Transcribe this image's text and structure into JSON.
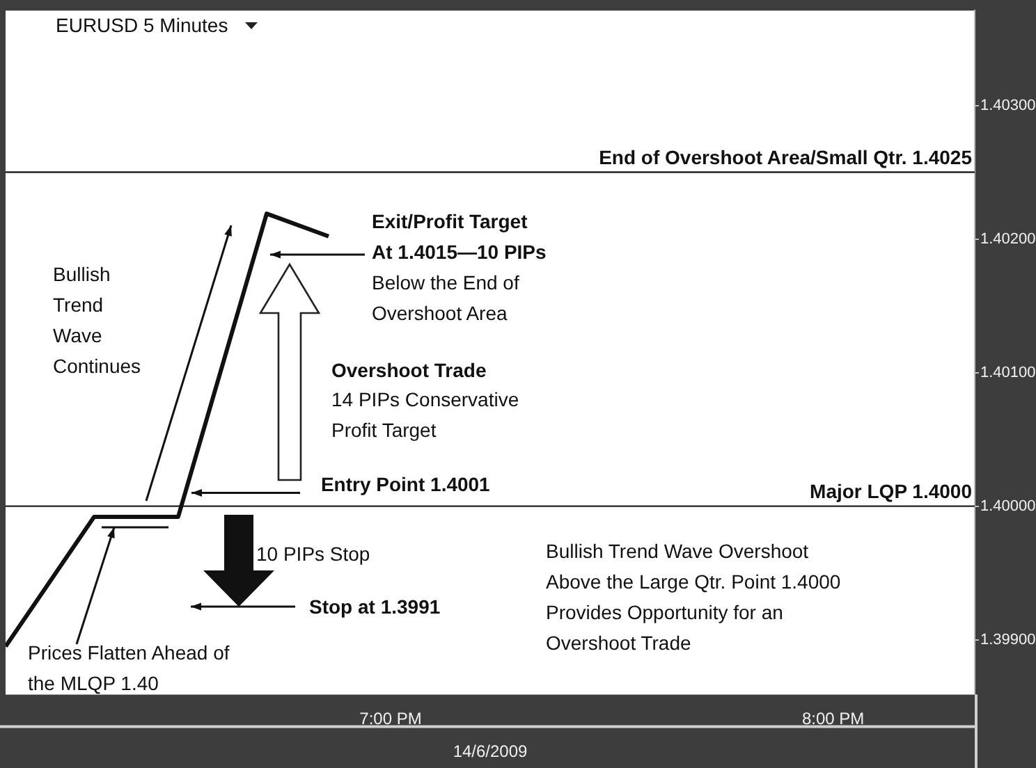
{
  "chart_data": {
    "type": "line",
    "title": "EURUSD 5 Minutes",
    "xlabel": "14/6/2009",
    "x": [
      18.13,
      18.33,
      18.52,
      18.72,
      18.86
    ],
    "values": [
      1.39895,
      1.39992,
      1.39992,
      1.40219,
      1.40202
    ],
    "color": "#111111",
    "xlim": [
      18.13,
      20.32
    ],
    "xticks": [
      {
        "value": 19,
        "label": "7:00 PM"
      },
      {
        "value": 20,
        "label": "8:00 PM"
      }
    ],
    "ylim": [
      1.39859,
      1.40371
    ],
    "yticks": [
      {
        "value": 1.399,
        "label": "1.39900"
      },
      {
        "value": 1.4,
        "label": "1.40000"
      },
      {
        "value": 1.401,
        "label": "1.40100"
      },
      {
        "value": 1.402,
        "label": "1.40200"
      },
      {
        "value": 1.403,
        "label": "1.40300"
      }
    ],
    "ref_lines": [
      {
        "axis": "y",
        "value": 1.4025,
        "label": "End of Overshoot Area/Small Qtr. 1.4025",
        "color": "#222222"
      },
      {
        "axis": "y",
        "value": 1.4,
        "label": "Major LQP 1.4000",
        "color": "#222222"
      }
    ],
    "annotations": [
      "Bullish\nTrend\nWave\nContinues",
      "Exit/Profit Target\nAt 1.4015—10 PIPs",
      "Below the End of\nOvershoot Area",
      "Overshoot Trade",
      "14 PIPs Conservative\nProfit Target",
      {
        "text": "Entry Point 1.4001",
        "x": 18.55,
        "y": 1.4001
      },
      "10 PIPs Stop",
      "Stop at 1.3991",
      "Prices Flatten Ahead of\nthe MLQP 1.40",
      "Bullish Trend Wave Overshoot\nAbove the Large Qtr. Point 1.4000\nProvides Opportunity for an\nOvershoot Trade"
    ]
  }
}
